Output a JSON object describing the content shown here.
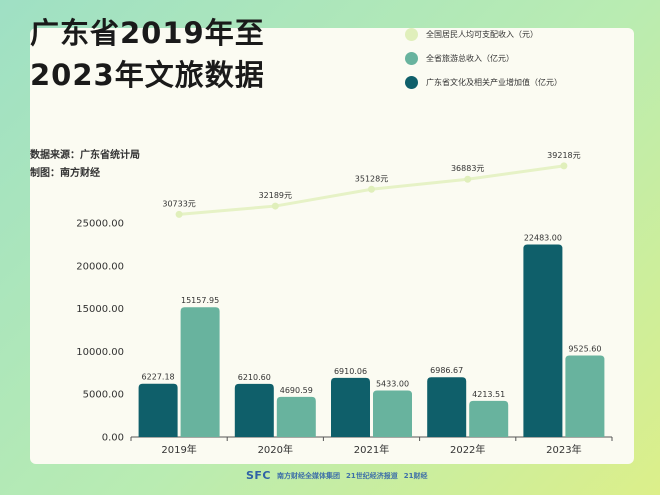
{
  "title_lines": [
    "广东省2019年至",
    "2023年文旅数据"
  ],
  "source_label": "数据来源：广东省统计局",
  "made_by_label": "制图：南方财经",
  "colors": {
    "income": "#e0efbb",
    "income_line": "#e6f2c6",
    "tourism": "#68b39e",
    "culture": "#0f5f6a"
  },
  "footer": {
    "sfc": "SFC",
    "brand1": "南方财经全媒体集团",
    "brand2": "21世纪经济报道",
    "brand3": "21财经"
  },
  "chart_data": {
    "type": "bar",
    "categories": [
      "2019年",
      "2020年",
      "2021年",
      "2022年",
      "2023年"
    ],
    "series": [
      {
        "name": "全省旅游总收入（亿元）",
        "values": [
          15157.95,
          4690.59,
          5433.0,
          4213.51,
          9525.6
        ],
        "labels": [
          "15157.95",
          "4690.59",
          "5433.00",
          "4213.51",
          "9525.60"
        ]
      },
      {
        "name": "广东省文化及相关产业增加值（亿元）",
        "values": [
          6227.18,
          6210.6,
          6910.06,
          6986.67,
          22483.0
        ],
        "labels": [
          "6227.18",
          "6210.60",
          "6910.06",
          "6986.67",
          "22483.00"
        ]
      }
    ],
    "line_series": {
      "name": "全国居民人均可支配收入（元）",
      "values": [
        30733,
        32189,
        35128,
        36883,
        39218
      ],
      "labels": [
        "30733元",
        "32189元",
        "35128元",
        "36883元",
        "39218元"
      ]
    },
    "yticks": [
      "0.00",
      "5000.00",
      "10000.00",
      "15000.00",
      "20000.00",
      "25000.00"
    ],
    "ylim": [
      0,
      25000
    ],
    "legend_position": "top-right"
  }
}
